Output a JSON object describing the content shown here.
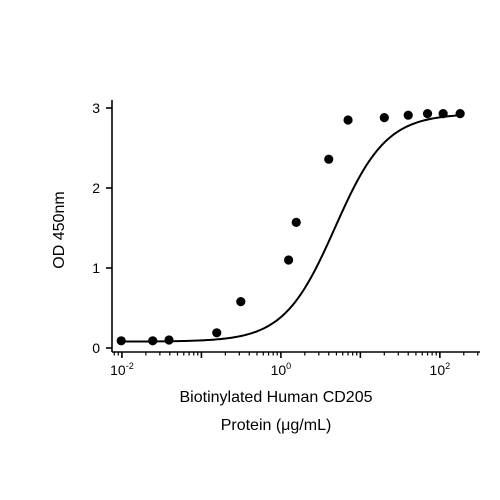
{
  "chart_data": {
    "type": "scatter",
    "title": "",
    "xlabel": [
      "Biotinylated Human CD205",
      "Protein (μg/mL)"
    ],
    "ylabel": "OD 450nm",
    "x_scale": "log",
    "xlim": [
      0.0075,
      320
    ],
    "ylim": [
      -0.05,
      3.1
    ],
    "x_ticks": [
      {
        "value": 0.01,
        "base": "10",
        "exp": "-2"
      },
      {
        "value": 1,
        "base": "10",
        "exp": "0"
      },
      {
        "value": 100,
        "base": "10",
        "exp": "2"
      }
    ],
    "y_ticks": [
      0,
      1,
      2,
      3
    ],
    "grid": false,
    "series": [
      {
        "points": {
          "x": [
            0.0098,
            0.0244,
            0.0391,
            0.156,
            0.313,
            1.25,
            1.56,
            4.0,
            7.0,
            20.0,
            40.0,
            70.0,
            110.0,
            180.0
          ],
          "y": [
            0.09,
            0.09,
            0.1,
            0.19,
            0.58,
            1.1,
            1.57,
            2.36,
            2.85,
            2.88,
            2.91,
            2.93,
            2.93,
            2.93
          ]
        },
        "fit": {
          "model": "4PL",
          "bottom": 0.08,
          "top": 2.93,
          "ec50": 4.8,
          "hill": 1.35
        },
        "color": "#000000"
      }
    ]
  }
}
